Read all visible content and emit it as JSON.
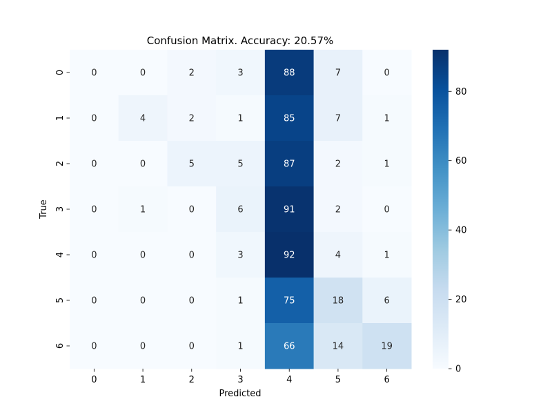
{
  "chart_data": {
    "type": "heatmap",
    "title": "Confusion Matrix. Accuracy: 20.57%",
    "xlabel": "Predicted",
    "ylabel": "True",
    "x_categories": [
      "0",
      "1",
      "2",
      "3",
      "4",
      "5",
      "6"
    ],
    "y_categories": [
      "0",
      "1",
      "2",
      "3",
      "4",
      "5",
      "6"
    ],
    "values": [
      [
        0,
        0,
        2,
        3,
        88,
        7,
        0
      ],
      [
        0,
        4,
        2,
        1,
        85,
        7,
        1
      ],
      [
        0,
        0,
        5,
        5,
        87,
        2,
        1
      ],
      [
        0,
        1,
        0,
        6,
        91,
        2,
        0
      ],
      [
        0,
        0,
        0,
        3,
        92,
        4,
        1
      ],
      [
        0,
        0,
        0,
        1,
        75,
        18,
        6
      ],
      [
        0,
        0,
        0,
        1,
        66,
        14,
        19
      ]
    ],
    "colormap": "Blues",
    "value_range": [
      0,
      92
    ],
    "colorbar_ticks": [
      0,
      20,
      40,
      60,
      80
    ],
    "annotations": true
  }
}
